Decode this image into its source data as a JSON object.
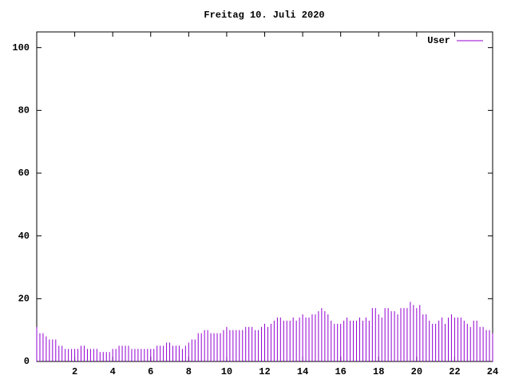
{
  "chart_data": {
    "type": "impulse",
    "title": "Freitag 10. Juli 2020",
    "series": [
      {
        "name": "User",
        "color": "#9400d3",
        "x": [
          0,
          0.167,
          0.333,
          0.5,
          0.667,
          0.833,
          1,
          1.167,
          1.333,
          1.5,
          1.667,
          1.833,
          2,
          2.167,
          2.333,
          2.5,
          2.667,
          2.833,
          3,
          3.167,
          3.333,
          3.5,
          3.667,
          3.833,
          4,
          4.167,
          4.333,
          4.5,
          4.667,
          4.833,
          5,
          5.167,
          5.333,
          5.5,
          5.667,
          5.833,
          6,
          6.167,
          6.333,
          6.5,
          6.667,
          6.833,
          7,
          7.167,
          7.333,
          7.5,
          7.667,
          7.833,
          8,
          8.167,
          8.333,
          8.5,
          8.667,
          8.833,
          9,
          9.167,
          9.333,
          9.5,
          9.667,
          9.833,
          10,
          10.167,
          10.333,
          10.5,
          10.667,
          10.833,
          11,
          11.167,
          11.333,
          11.5,
          11.667,
          11.833,
          12,
          12.167,
          12.333,
          12.5,
          12.667,
          12.833,
          13,
          13.167,
          13.333,
          13.5,
          13.667,
          13.833,
          14,
          14.167,
          14.333,
          14.5,
          14.667,
          14.833,
          15,
          15.167,
          15.333,
          15.5,
          15.667,
          15.833,
          16,
          16.167,
          16.333,
          16.5,
          16.667,
          16.833,
          17,
          17.167,
          17.333,
          17.5,
          17.667,
          17.833,
          18,
          18.167,
          18.333,
          18.5,
          18.667,
          18.833,
          19,
          19.167,
          19.333,
          19.5,
          19.667,
          19.833,
          20,
          20.167,
          20.333,
          20.5,
          20.667,
          20.833,
          21,
          21.167,
          21.333,
          21.5,
          21.667,
          21.833,
          22,
          22.167,
          22.333,
          22.5,
          22.667,
          22.833,
          23,
          23.167,
          23.333,
          23.5,
          23.667,
          23.833,
          24
        ],
        "values": [
          11,
          9,
          9,
          8,
          7,
          7,
          7,
          5,
          5,
          4,
          4,
          4,
          4,
          4,
          5,
          5,
          4,
          4,
          4,
          4,
          3,
          3,
          3,
          3,
          4,
          4,
          5,
          5,
          5,
          5,
          4,
          4,
          4,
          4,
          4,
          4,
          4,
          4,
          5,
          5,
          5,
          6,
          6,
          5,
          5,
          5,
          4,
          5,
          6,
          7,
          7,
          9,
          9,
          10,
          10,
          9,
          9,
          9,
          9,
          10,
          11,
          10,
          10,
          10,
          10,
          10,
          11,
          11,
          11,
          10,
          10,
          11,
          12,
          11,
          12,
          13,
          14,
          14,
          13,
          13,
          13,
          14,
          13,
          14,
          15,
          14,
          14,
          15,
          15,
          16,
          17,
          16,
          15,
          13,
          12,
          12,
          12,
          13,
          14,
          13,
          13,
          13,
          14,
          13,
          14,
          13,
          17,
          17,
          15,
          14,
          17,
          17,
          16,
          16,
          15,
          17,
          17,
          17,
          19,
          18,
          17,
          18,
          15,
          15,
          13,
          12,
          12,
          13,
          14,
          12,
          14,
          15,
          14,
          14,
          14,
          13,
          12,
          11,
          13,
          13,
          11,
          11,
          10,
          10,
          9
        ]
      }
    ],
    "xlim": [
      0,
      24
    ],
    "xticks": [
      2,
      4,
      6,
      8,
      10,
      12,
      14,
      16,
      18,
      20,
      22,
      24
    ],
    "ylim": [
      0,
      105
    ],
    "yticks": [
      0,
      20,
      40,
      60,
      80,
      100
    ],
    "legend": "top-right"
  }
}
